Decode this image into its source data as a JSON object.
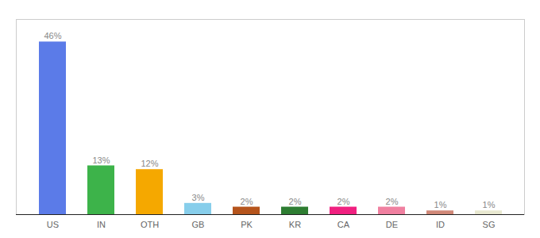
{
  "chart_data": {
    "type": "bar",
    "categories": [
      "US",
      "IN",
      "OTH",
      "GB",
      "PK",
      "KR",
      "CA",
      "DE",
      "ID",
      "SG"
    ],
    "values": [
      46,
      13,
      12,
      3,
      2,
      2,
      2,
      2,
      1,
      1
    ],
    "value_labels": [
      "46%",
      "13%",
      "12%",
      "3%",
      "2%",
      "2%",
      "2%",
      "2%",
      "1%",
      "1%"
    ],
    "colors": [
      "#5b7be8",
      "#3db34a",
      "#f5a800",
      "#87ceeb",
      "#b5541c",
      "#2e7d32",
      "#f02080",
      "#f080a0",
      "#d08878",
      "#e8e8d0"
    ],
    "ylim": [
      0,
      52
    ],
    "data_labels": true,
    "tick_labels": "x",
    "grid": false
  }
}
